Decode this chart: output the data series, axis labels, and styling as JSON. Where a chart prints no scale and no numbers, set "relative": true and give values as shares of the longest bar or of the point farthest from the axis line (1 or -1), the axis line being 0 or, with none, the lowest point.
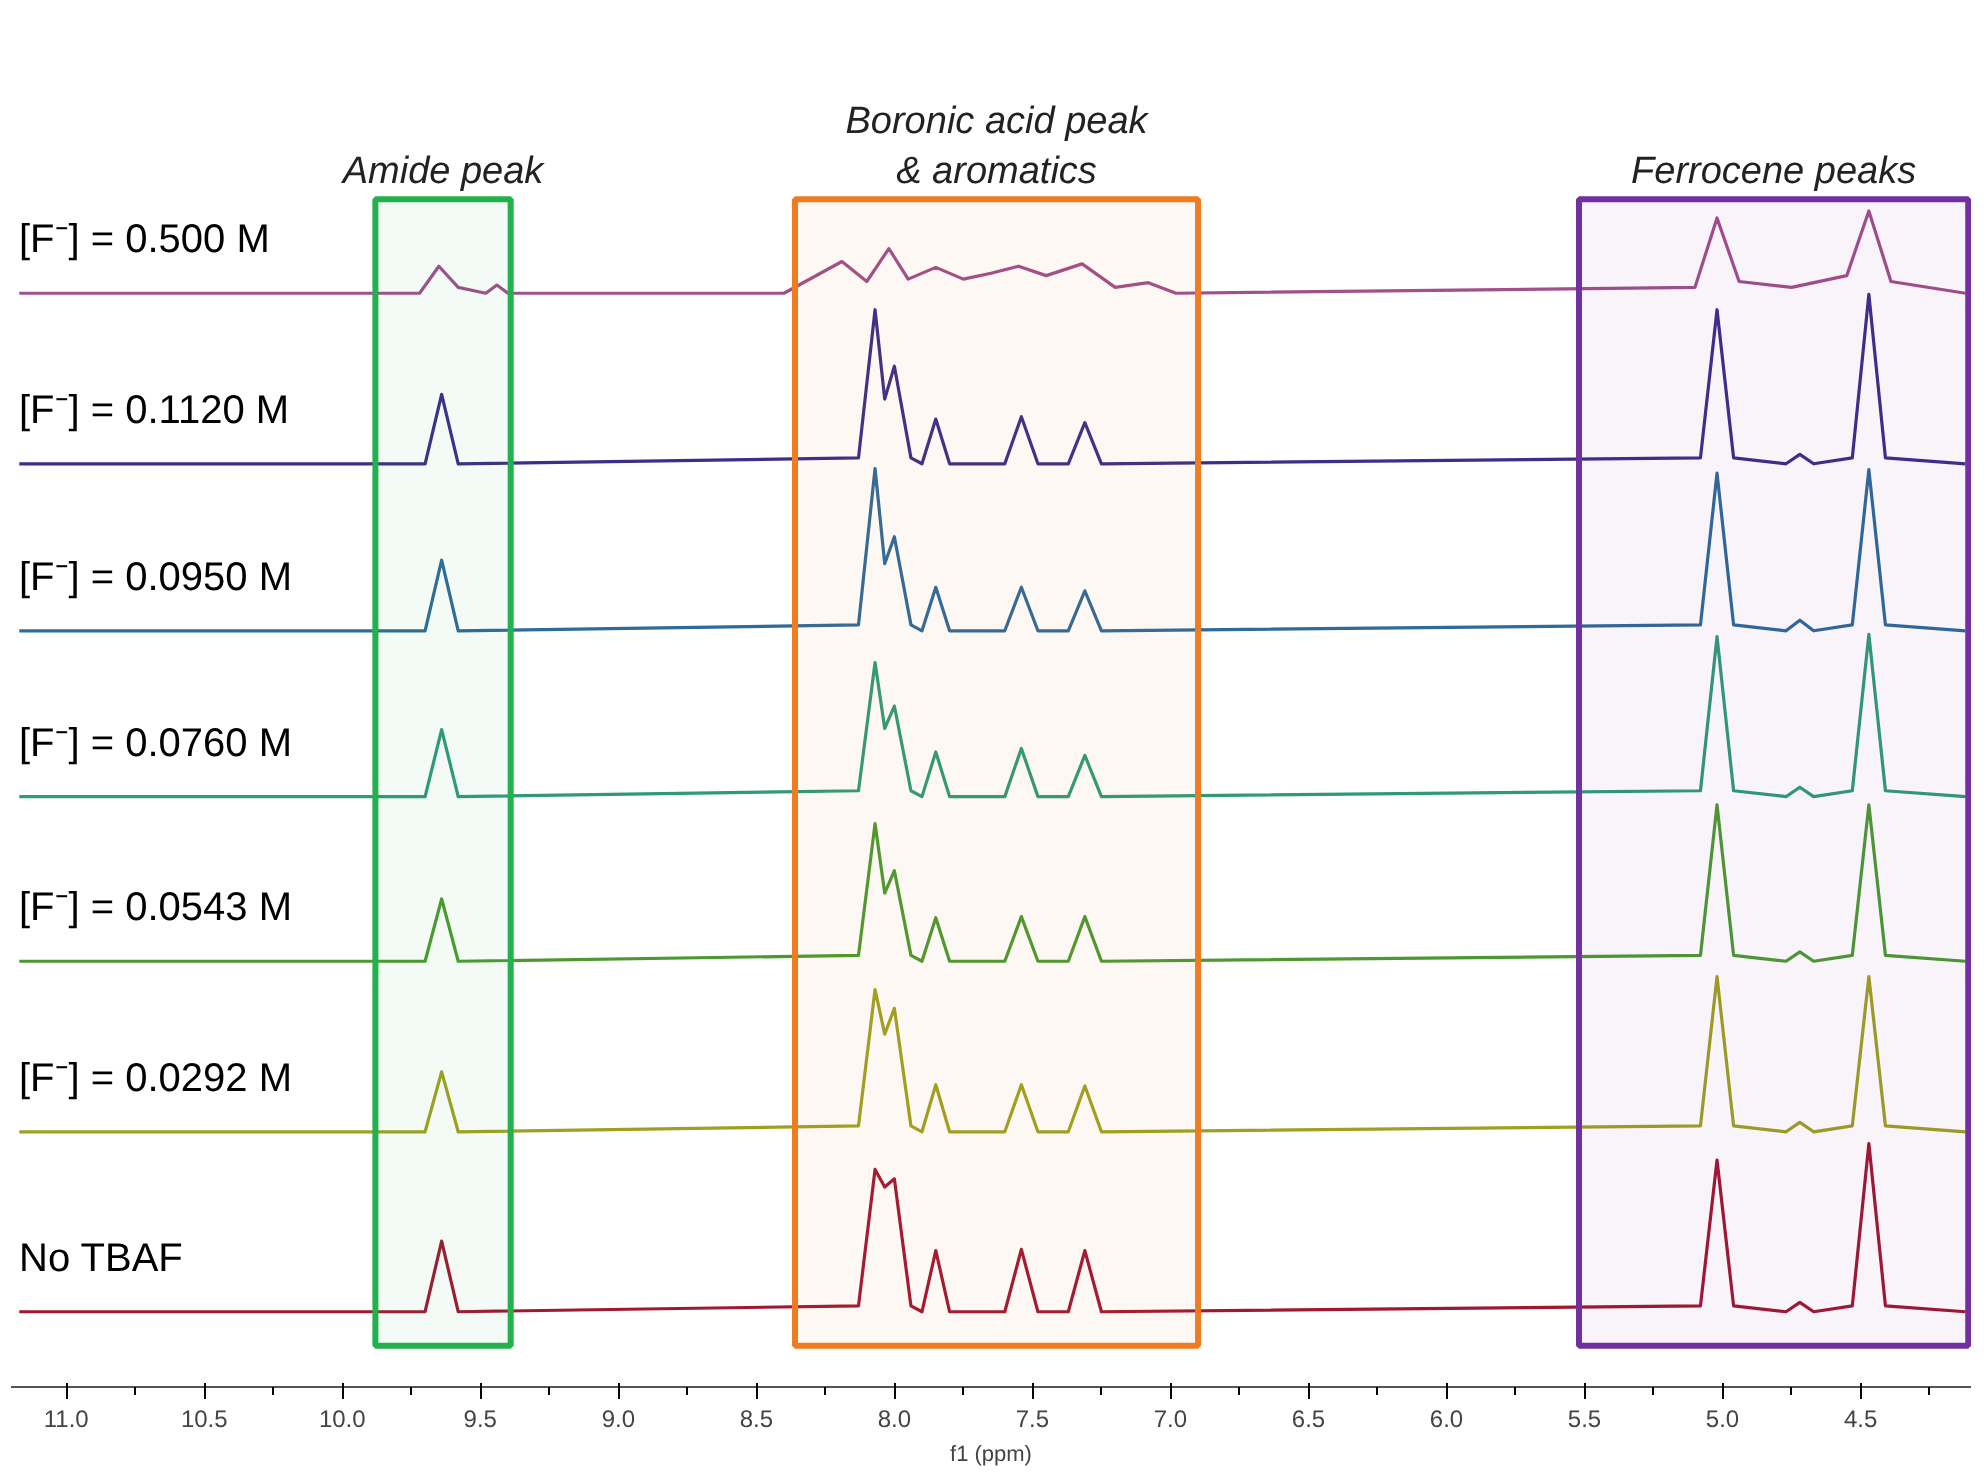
{
  "chart_data": {
    "type": "line",
    "relative": true,
    "xlabel": "f1 (ppm)",
    "xlim": [
      11.2,
      4.1
    ],
    "xticks": [
      {
        "value": 11.0,
        "label": "11.0"
      },
      {
        "value": 10.5,
        "label": "10.5"
      },
      {
        "value": 10.0,
        "label": "10.0"
      },
      {
        "value": 9.5,
        "label": "9.5"
      },
      {
        "value": 9.0,
        "label": "9.0"
      },
      {
        "value": 8.5,
        "label": "8.5"
      },
      {
        "value": 8.0,
        "label": "8.0"
      },
      {
        "value": 7.5,
        "label": "7.5"
      },
      {
        "value": 7.0,
        "label": "7.0"
      },
      {
        "value": 6.5,
        "label": "6.5"
      },
      {
        "value": 6.0,
        "label": "6.0"
      },
      {
        "value": 5.5,
        "label": "5.5"
      },
      {
        "value": 5.0,
        "label": "5.0"
      },
      {
        "value": 4.5,
        "label": "4.5"
      }
    ],
    "series": [
      {
        "name": "[F⁻] = 0.500 M",
        "color": "#a0508a",
        "x": [
          11.17,
          9.72,
          9.65,
          9.58,
          9.48,
          9.44,
          9.4,
          8.4,
          8.19,
          8.1,
          8.02,
          7.95,
          7.85,
          7.75,
          7.65,
          7.55,
          7.45,
          7.32,
          7.2,
          7.08,
          6.98,
          5.1,
          5.02,
          4.94,
          4.75,
          4.55,
          4.47,
          4.39,
          4.12
        ],
        "values": [
          0.93,
          0.93,
          0.953,
          0.935,
          0.93,
          0.937,
          0.93,
          0.93,
          0.957,
          0.94,
          0.968,
          0.942,
          0.952,
          0.942,
          0.947,
          0.953,
          0.945,
          0.955,
          0.935,
          0.939,
          0.93,
          0.935,
          0.994,
          0.94,
          0.935,
          0.945,
          1.0,
          0.94,
          0.93
        ]
      },
      {
        "name": "[F⁻] = 0.1120 M",
        "color": "#3a2f8a",
        "x": [
          11.17,
          9.7,
          9.64,
          9.58,
          8.13,
          8.07,
          8.035,
          8.0,
          7.94,
          7.9,
          7.85,
          7.8,
          7.6,
          7.54,
          7.48,
          7.37,
          7.31,
          7.25,
          5.08,
          5.02,
          4.96,
          4.77,
          4.72,
          4.67,
          4.53,
          4.47,
          4.41,
          4.12
        ],
        "values": [
          0.785,
          0.785,
          0.844,
          0.785,
          0.79,
          0.916,
          0.84,
          0.868,
          0.79,
          0.785,
          0.823,
          0.785,
          0.785,
          0.825,
          0.785,
          0.785,
          0.82,
          0.785,
          0.79,
          0.916,
          0.79,
          0.785,
          0.793,
          0.785,
          0.79,
          0.929,
          0.79,
          0.785
        ]
      },
      {
        "name": "[F⁻] = 0.0950 M",
        "color": "#2e6a9a",
        "x": [
          11.17,
          9.7,
          9.64,
          9.58,
          8.13,
          8.07,
          8.035,
          8.0,
          7.94,
          7.9,
          7.85,
          7.8,
          7.6,
          7.54,
          7.48,
          7.37,
          7.31,
          7.25,
          5.08,
          5.02,
          4.96,
          4.77,
          4.72,
          4.67,
          4.53,
          4.47,
          4.41,
          4.12
        ],
        "values": [
          0.643,
          0.643,
          0.703,
          0.643,
          0.648,
          0.781,
          0.7,
          0.723,
          0.648,
          0.643,
          0.68,
          0.643,
          0.643,
          0.68,
          0.643,
          0.643,
          0.677,
          0.643,
          0.648,
          0.777,
          0.648,
          0.643,
          0.652,
          0.643,
          0.648,
          0.78,
          0.648,
          0.643
        ]
      },
      {
        "name": "[F⁻] = 0.0760 M",
        "color": "#2e9a7a",
        "x": [
          11.17,
          9.7,
          9.64,
          9.58,
          8.13,
          8.07,
          8.035,
          8.0,
          7.94,
          7.9,
          7.85,
          7.8,
          7.6,
          7.54,
          7.48,
          7.37,
          7.31,
          7.25,
          5.08,
          5.02,
          4.96,
          4.77,
          4.72,
          4.67,
          4.53,
          4.47,
          4.41,
          4.12
        ],
        "values": [
          0.502,
          0.502,
          0.559,
          0.502,
          0.507,
          0.616,
          0.56,
          0.579,
          0.507,
          0.502,
          0.54,
          0.502,
          0.502,
          0.543,
          0.502,
          0.502,
          0.537,
          0.502,
          0.507,
          0.638,
          0.507,
          0.502,
          0.51,
          0.502,
          0.507,
          0.64,
          0.507,
          0.502
        ]
      },
      {
        "name": "[F⁻] = 0.0543 M",
        "color": "#4a9a30",
        "x": [
          11.17,
          9.7,
          9.64,
          9.58,
          8.13,
          8.07,
          8.035,
          8.0,
          7.94,
          7.9,
          7.85,
          7.8,
          7.6,
          7.54,
          7.48,
          7.37,
          7.31,
          7.25,
          5.08,
          5.02,
          4.96,
          4.77,
          4.72,
          4.67,
          4.53,
          4.47,
          4.41,
          4.12
        ],
        "values": [
          0.362,
          0.362,
          0.415,
          0.362,
          0.367,
          0.479,
          0.42,
          0.439,
          0.367,
          0.362,
          0.399,
          0.362,
          0.362,
          0.4,
          0.362,
          0.362,
          0.4,
          0.362,
          0.367,
          0.495,
          0.367,
          0.362,
          0.37,
          0.362,
          0.367,
          0.495,
          0.367,
          0.362
        ]
      },
      {
        "name": "[F⁻] = 0.0292 M",
        "color": "#a0a020",
        "x": [
          11.17,
          9.7,
          9.64,
          9.58,
          8.13,
          8.07,
          8.035,
          8.0,
          7.94,
          7.9,
          7.85,
          7.8,
          7.6,
          7.54,
          7.48,
          7.37,
          7.31,
          7.25,
          5.08,
          5.02,
          4.96,
          4.77,
          4.72,
          4.67,
          4.53,
          4.47,
          4.41,
          4.12
        ],
        "values": [
          0.217,
          0.217,
          0.268,
          0.217,
          0.222,
          0.338,
          0.3,
          0.322,
          0.222,
          0.217,
          0.257,
          0.217,
          0.217,
          0.257,
          0.217,
          0.217,
          0.256,
          0.217,
          0.222,
          0.349,
          0.222,
          0.217,
          0.225,
          0.217,
          0.222,
          0.349,
          0.222,
          0.217
        ]
      },
      {
        "name": "No TBAF",
        "color": "#a01830",
        "x": [
          11.17,
          9.7,
          9.64,
          9.58,
          8.13,
          8.07,
          8.035,
          8.0,
          7.94,
          7.9,
          7.85,
          7.8,
          7.6,
          7.54,
          7.48,
          7.37,
          7.31,
          7.25,
          5.08,
          5.02,
          4.96,
          4.77,
          4.72,
          4.67,
          4.53,
          4.47,
          4.41,
          4.12
        ],
        "values": [
          0.064,
          0.064,
          0.124,
          0.064,
          0.069,
          0.185,
          0.17,
          0.177,
          0.069,
          0.064,
          0.116,
          0.064,
          0.064,
          0.117,
          0.064,
          0.064,
          0.116,
          0.064,
          0.069,
          0.193,
          0.069,
          0.064,
          0.072,
          0.064,
          0.069,
          0.207,
          0.069,
          0.064
        ]
      }
    ],
    "bands": [
      {
        "axis": "x",
        "from": 9.88,
        "to": 9.39,
        "label": "Amide peak",
        "color": "#22b14c"
      },
      {
        "axis": "x",
        "from": 8.36,
        "to": 6.9,
        "label": "Boronic acid peak\n& aromatics",
        "color": "#f07c22"
      },
      {
        "axis": "x",
        "from": 5.52,
        "to": 4.11,
        "label": "Ferrocene peaks",
        "color": "#7030a0"
      }
    ]
  }
}
